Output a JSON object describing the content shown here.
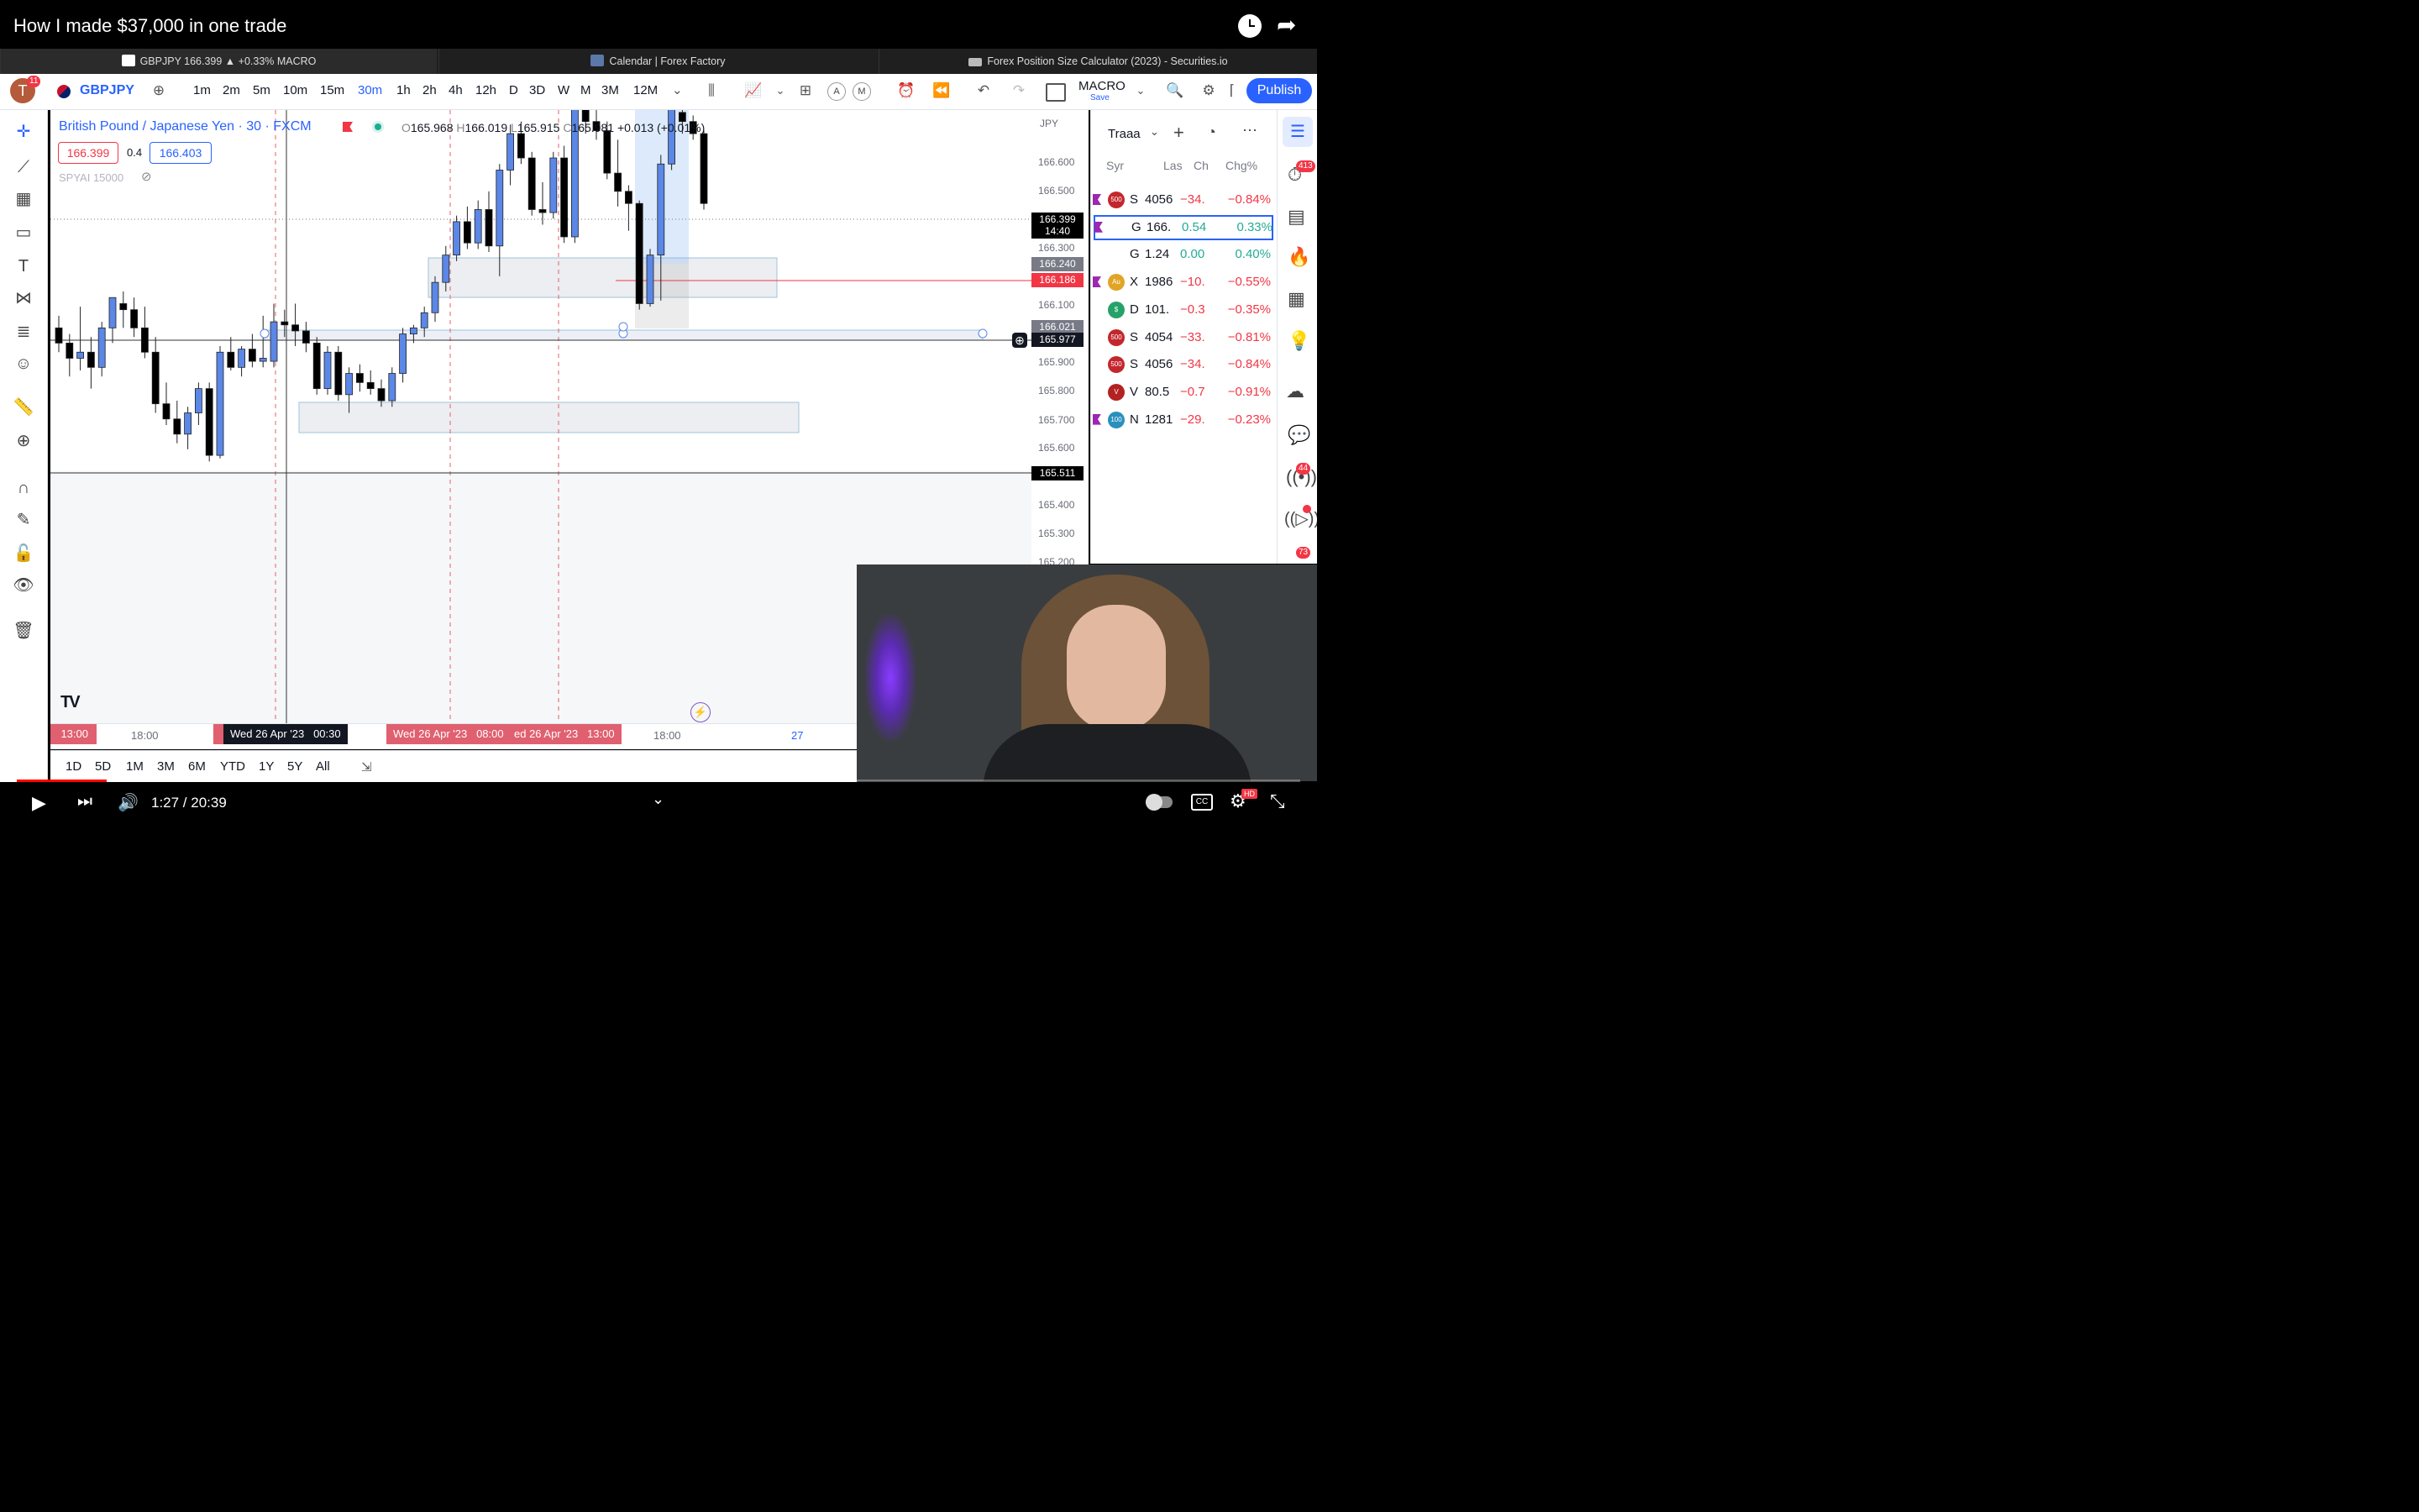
{
  "video": {
    "title": "How I made $37,000 in one trade",
    "time_display": "1:27 / 20:39",
    "progress": 0.07,
    "quality_badge": "HD"
  },
  "browser_tabs": [
    {
      "label": "GBPJPY 166.399 ▲ +0.33% MACRO",
      "active": true
    },
    {
      "label": "Calendar | Forex Factory",
      "active": false
    },
    {
      "label": "Forex Position Size Calculator (2023) - Securities.io",
      "active": false
    }
  ],
  "toolbar": {
    "avatar_initial": "T",
    "notification_count": "11",
    "symbol": "GBPJPY",
    "timeframes": [
      "1m",
      "2m",
      "5m",
      "10m",
      "15m",
      "30m",
      "1h",
      "2h",
      "4h",
      "12h",
      "D",
      "3D",
      "W",
      "M",
      "3M",
      "12M"
    ],
    "selected_timeframe": "30m",
    "layout_name": "MACRO",
    "layout_save": "Save",
    "publish_label": "Publish",
    "alert_a": "A",
    "alert_m": "M"
  },
  "legend": {
    "instrument": "British Pound / Japanese Yen · 30 · FXCM",
    "o_label": "O",
    "o_value": "165.968",
    "h_label": "H",
    "h_value": "166.019",
    "l_label": "L",
    "l_value": "165.915",
    "c_label": "C",
    "c_value": "165.981",
    "change": "+0.013 (+0.01%)",
    "sell_price": "166.399",
    "spread": "0.4",
    "buy_price": "166.403",
    "indicator": "SPYAI 15000"
  },
  "price_scale": {
    "currency": "JPY",
    "ticks": [
      "166.600",
      "166.500",
      "166.300",
      "166.100",
      "165.900",
      "165.800",
      "165.700",
      "165.600",
      "165.400",
      "165.300",
      "165.200"
    ],
    "current_price": "166.399",
    "countdown": "14:40",
    "label_166240": "166.240",
    "label_166186": "166.186",
    "label_166021": "166.021",
    "crosshair_price": "165.977",
    "label_165511": "165.511"
  },
  "time_axis": {
    "ticks": [
      "13:00",
      "18:00",
      "18:00",
      "27"
    ],
    "crosshair_label": "Wed 26 Apr '23   00:30",
    "range_label_1": "Wed 26 Apr '23   08:00",
    "range_label_2": "ed 26 Apr '23   13:00"
  },
  "date_ranges": [
    "1D",
    "5D",
    "1M",
    "3M",
    "6M",
    "YTD",
    "1Y",
    "5Y",
    "All"
  ],
  "watchlist": {
    "title": "Traaa",
    "columns": [
      "Syr",
      "Las",
      "Ch",
      "Chg%"
    ],
    "rows": [
      {
        "icon": "500",
        "sym": "S",
        "last": "4056",
        "ch": "−34.",
        "chg": "−0.84%",
        "dir": "neg",
        "flag": true
      },
      {
        "icon": "GB",
        "sym": "G",
        "last": "166.",
        "ch": "0.54",
        "chg": "0.33%",
        "dir": "pos",
        "flag": true,
        "selected": true
      },
      {
        "icon": "GB",
        "sym": "G",
        "last": "1.24",
        "ch": "0.00",
        "chg": "0.40%",
        "dir": "pos",
        "flag": false
      },
      {
        "icon": "Au",
        "sym": "X",
        "last": "1986",
        "ch": "−10.",
        "chg": "−0.55%",
        "dir": "neg",
        "flag": true
      },
      {
        "icon": "$",
        "sym": "D",
        "last": "101.",
        "ch": "−0.3",
        "chg": "−0.35%",
        "dir": "neg",
        "flag": false
      },
      {
        "icon": "500",
        "sym": "S",
        "last": "4054",
        "ch": "−33.",
        "chg": "−0.81%",
        "dir": "neg",
        "flag": false
      },
      {
        "icon": "500",
        "sym": "S",
        "last": "4056",
        "ch": "−34.",
        "chg": "−0.84%",
        "dir": "neg",
        "flag": false
      },
      {
        "icon": "V",
        "sym": "V",
        "last": "80.5",
        "ch": "−0.7",
        "chg": "−0.91%",
        "dir": "neg",
        "flag": false
      },
      {
        "icon": "100",
        "sym": "N",
        "last": "1281",
        "ch": "−29.",
        "chg": "−0.23%",
        "dir": "neg",
        "flag": true
      }
    ]
  },
  "right_sidebar": {
    "badge_alerts": "413",
    "badge_ideas": "44",
    "badge_streams": "73"
  },
  "colors": {
    "accent": "#2962ff",
    "bull": "#5b87e6",
    "bear": "#000000",
    "neg": "#f23645",
    "pos": "#22ab94"
  },
  "chart_data": {
    "type": "candlestick",
    "candles": [
      {
        "o": 165.98,
        "h": 166.02,
        "l": 165.9,
        "c": 165.93
      },
      {
        "o": 165.93,
        "h": 165.96,
        "l": 165.82,
        "c": 165.88
      },
      {
        "o": 165.88,
        "h": 166.05,
        "l": 165.84,
        "c": 165.9
      },
      {
        "o": 165.9,
        "h": 165.95,
        "l": 165.78,
        "c": 165.85
      },
      {
        "o": 165.85,
        "h": 166.0,
        "l": 165.82,
        "c": 165.98
      },
      {
        "o": 165.98,
        "h": 166.08,
        "l": 165.93,
        "c": 166.08
      },
      {
        "o": 166.06,
        "h": 166.1,
        "l": 165.98,
        "c": 166.04
      },
      {
        "o": 166.04,
        "h": 166.08,
        "l": 165.95,
        "c": 165.98
      },
      {
        "o": 165.98,
        "h": 166.05,
        "l": 165.88,
        "c": 165.9
      },
      {
        "o": 165.9,
        "h": 165.95,
        "l": 165.7,
        "c": 165.73
      },
      {
        "o": 165.73,
        "h": 165.8,
        "l": 165.66,
        "c": 165.68
      },
      {
        "o": 165.68,
        "h": 165.74,
        "l": 165.6,
        "c": 165.63
      },
      {
        "o": 165.63,
        "h": 165.72,
        "l": 165.58,
        "c": 165.7
      },
      {
        "o": 165.7,
        "h": 165.8,
        "l": 165.66,
        "c": 165.78
      },
      {
        "o": 165.78,
        "h": 165.8,
        "l": 165.54,
        "c": 165.56
      },
      {
        "o": 165.56,
        "h": 165.92,
        "l": 165.55,
        "c": 165.9
      },
      {
        "o": 165.9,
        "h": 165.95,
        "l": 165.84,
        "c": 165.85
      },
      {
        "o": 165.85,
        "h": 165.92,
        "l": 165.82,
        "c": 165.91
      },
      {
        "o": 165.91,
        "h": 165.96,
        "l": 165.85,
        "c": 165.87
      },
      {
        "o": 165.87,
        "h": 166.02,
        "l": 165.85,
        "c": 165.88
      },
      {
        "o": 165.87,
        "h": 166.06,
        "l": 165.85,
        "c": 166.0
      },
      {
        "o": 166.0,
        "h": 166.04,
        "l": 165.95,
        "c": 165.99
      },
      {
        "o": 165.99,
        "h": 166.06,
        "l": 165.92,
        "c": 165.97
      },
      {
        "o": 165.97,
        "h": 166.0,
        "l": 165.9,
        "c": 165.93
      },
      {
        "o": 165.93,
        "h": 165.95,
        "l": 165.76,
        "c": 165.78
      },
      {
        "o": 165.78,
        "h": 165.92,
        "l": 165.76,
        "c": 165.9
      },
      {
        "o": 165.9,
        "h": 165.92,
        "l": 165.74,
        "c": 165.76
      },
      {
        "o": 165.76,
        "h": 165.85,
        "l": 165.7,
        "c": 165.83
      },
      {
        "o": 165.83,
        "h": 165.86,
        "l": 165.77,
        "c": 165.8
      },
      {
        "o": 165.8,
        "h": 165.84,
        "l": 165.76,
        "c": 165.78
      },
      {
        "o": 165.78,
        "h": 165.81,
        "l": 165.72,
        "c": 165.74
      },
      {
        "o": 165.74,
        "h": 165.85,
        "l": 165.72,
        "c": 165.83
      },
      {
        "o": 165.83,
        "h": 165.98,
        "l": 165.8,
        "c": 165.96
      },
      {
        "o": 165.96,
        "h": 165.99,
        "l": 165.93,
        "c": 165.98
      },
      {
        "o": 165.98,
        "h": 166.05,
        "l": 165.95,
        "c": 166.03
      },
      {
        "o": 166.03,
        "h": 166.15,
        "l": 166.0,
        "c": 166.13
      },
      {
        "o": 166.13,
        "h": 166.25,
        "l": 166.1,
        "c": 166.22
      },
      {
        "o": 166.22,
        "h": 166.35,
        "l": 166.2,
        "c": 166.33
      },
      {
        "o": 166.33,
        "h": 166.38,
        "l": 166.24,
        "c": 166.26
      },
      {
        "o": 166.26,
        "h": 166.4,
        "l": 166.24,
        "c": 166.37
      },
      {
        "o": 166.37,
        "h": 166.43,
        "l": 166.23,
        "c": 166.25
      },
      {
        "o": 166.25,
        "h": 166.52,
        "l": 166.15,
        "c": 166.5
      },
      {
        "o": 166.5,
        "h": 166.65,
        "l": 166.45,
        "c": 166.62
      },
      {
        "o": 166.62,
        "h": 166.66,
        "l": 166.52,
        "c": 166.54
      },
      {
        "o": 166.54,
        "h": 166.56,
        "l": 166.35,
        "c": 166.37
      },
      {
        "o": 166.37,
        "h": 166.46,
        "l": 166.32,
        "c": 166.36
      },
      {
        "o": 166.36,
        "h": 166.56,
        "l": 166.34,
        "c": 166.54
      },
      {
        "o": 166.54,
        "h": 166.58,
        "l": 166.26,
        "c": 166.28
      },
      {
        "o": 166.28,
        "h": 166.75,
        "l": 166.26,
        "c": 166.72
      },
      {
        "o": 166.7,
        "h": 166.74,
        "l": 166.62,
        "c": 166.66
      },
      {
        "o": 166.66,
        "h": 166.7,
        "l": 166.6,
        "c": 166.63
      },
      {
        "o": 166.63,
        "h": 166.66,
        "l": 166.47,
        "c": 166.49
      },
      {
        "o": 166.49,
        "h": 166.6,
        "l": 166.38,
        "c": 166.43
      },
      {
        "o": 166.43,
        "h": 166.45,
        "l": 166.3,
        "c": 166.39
      },
      {
        "o": 166.39,
        "h": 166.4,
        "l": 166.04,
        "c": 166.06
      },
      {
        "o": 166.06,
        "h": 166.24,
        "l": 166.05,
        "c": 166.22
      },
      {
        "o": 166.22,
        "h": 166.55,
        "l": 166.07,
        "c": 166.52
      },
      {
        "o": 166.52,
        "h": 166.72,
        "l": 166.5,
        "c": 166.7
      },
      {
        "o": 166.69,
        "h": 166.72,
        "l": 166.62,
        "c": 166.66
      },
      {
        "o": 166.66,
        "h": 166.68,
        "l": 166.6,
        "c": 166.62
      },
      {
        "o": 166.62,
        "h": 166.63,
        "l": 166.37,
        "c": 166.39
      }
    ],
    "y_range": [
      165.17,
      166.72
    ]
  }
}
